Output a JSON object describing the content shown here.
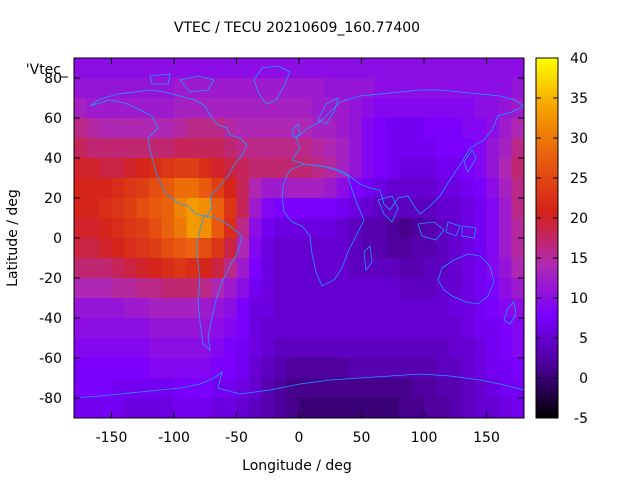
{
  "chart_data": {
    "type": "heatmap",
    "title": "VTEC / TECU 20210609_160.77400",
    "xlabel": "Longitude / deg",
    "ylabel": "Latitude / deg",
    "key_label": "'Vtec_",
    "xlim": [
      -180,
      180
    ],
    "ylim": [
      -90,
      90
    ],
    "x_ticks": [
      -150,
      -100,
      -50,
      0,
      50,
      100,
      150
    ],
    "y_ticks": [
      -80,
      -60,
      -40,
      -20,
      0,
      20,
      40,
      60,
      80
    ],
    "colorbar_range": [
      -5,
      40
    ],
    "colorbar_ticks": [
      -5,
      0,
      5,
      10,
      15,
      20,
      25,
      30,
      35,
      40
    ],
    "colormap": [
      "#000000",
      "#4b0096",
      "#7a00ff",
      "#b02ab0",
      "#d4221a",
      "#e8590f",
      "#f5a000",
      "#ffff00"
    ],
    "coastline_color": "#1e9bff",
    "grid": false,
    "longitudes": [
      -175,
      -165,
      -155,
      -145,
      -135,
      -125,
      -115,
      -105,
      -95,
      -85,
      -75,
      -65,
      -55,
      -45,
      -35,
      -25,
      -15,
      -5,
      5,
      15,
      25,
      35,
      45,
      55,
      65,
      75,
      85,
      95,
      105,
      115,
      125,
      135,
      145,
      155,
      165,
      175
    ],
    "latitudes": [
      85,
      75,
      65,
      55,
      45,
      35,
      25,
      15,
      5,
      -5,
      -15,
      -25,
      -35,
      -45,
      -55,
      -65,
      -75,
      -85
    ],
    "values": [
      [
        10,
        10,
        10,
        10,
        10,
        10,
        10,
        10,
        10,
        10,
        10,
        10,
        10,
        10,
        10,
        10,
        10,
        10,
        10,
        10,
        10,
        10,
        10,
        10,
        10,
        10,
        10,
        10,
        10,
        10,
        10,
        10,
        10,
        10,
        10,
        10
      ],
      [
        11,
        11,
        11,
        11,
        11,
        11,
        11,
        11,
        12,
        12,
        12,
        12,
        12,
        12,
        12,
        12,
        12,
        12,
        12,
        12,
        11,
        11,
        11,
        11,
        10,
        10,
        10,
        10,
        10,
        10,
        10,
        10,
        10,
        10,
        10,
        11
      ],
      [
        13,
        12,
        12,
        12,
        12,
        12,
        12,
        12,
        13,
        13,
        13,
        13,
        13,
        13,
        13,
        13,
        13,
        13,
        13,
        12,
        12,
        12,
        11,
        10,
        9,
        9,
        9,
        9,
        9,
        9,
        9,
        9,
        10,
        10,
        11,
        12
      ],
      [
        16,
        15,
        14,
        14,
        14,
        14,
        14,
        14,
        15,
        16,
        16,
        16,
        15,
        14,
        14,
        14,
        14,
        14,
        14,
        13,
        13,
        12,
        11,
        9,
        8,
        7,
        7,
        7,
        8,
        8,
        8,
        9,
        9,
        10,
        12,
        14
      ],
      [
        18,
        17,
        17,
        17,
        17,
        17,
        17,
        17,
        18,
        18,
        18,
        18,
        17,
        16,
        16,
        16,
        16,
        16,
        16,
        15,
        14,
        13,
        11,
        9,
        8,
        7,
        7,
        7,
        7,
        8,
        8,
        8,
        9,
        11,
        13,
        16
      ],
      [
        20,
        20,
        19,
        19,
        20,
        21,
        22,
        23,
        24,
        24,
        22,
        20,
        19,
        18,
        17,
        17,
        17,
        17,
        17,
        16,
        15,
        13,
        11,
        9,
        8,
        7,
        6,
        6,
        6,
        7,
        7,
        8,
        9,
        11,
        14,
        17
      ],
      [
        21,
        21,
        21,
        22,
        23,
        24,
        26,
        27,
        29,
        29,
        27,
        24,
        21,
        18,
        14,
        12,
        12,
        13,
        13,
        13,
        12,
        10,
        8,
        7,
        6,
        5,
        5,
        5,
        5,
        6,
        6,
        7,
        8,
        10,
        13,
        16
      ],
      [
        21,
        21,
        22,
        23,
        24,
        26,
        27,
        28,
        31,
        33,
        32,
        28,
        23,
        18,
        12,
        9,
        8,
        8,
        8,
        8,
        8,
        7,
        6,
        5,
        4,
        4,
        4,
        4,
        4,
        5,
        5,
        6,
        7,
        9,
        12,
        16
      ],
      [
        20,
        20,
        21,
        22,
        23,
        24,
        26,
        28,
        30,
        33,
        32,
        27,
        22,
        16,
        10,
        7,
        6,
        6,
        6,
        6,
        6,
        5,
        4,
        3,
        3,
        2,
        1,
        2,
        3,
        4,
        5,
        6,
        7,
        9,
        12,
        15
      ],
      [
        19,
        19,
        20,
        21,
        22,
        23,
        24,
        26,
        27,
        28,
        26,
        23,
        19,
        14,
        9,
        6,
        5,
        5,
        5,
        5,
        5,
        5,
        4,
        3,
        3,
        2,
        2,
        3,
        3,
        4,
        5,
        6,
        7,
        9,
        12,
        15
      ],
      [
        17,
        17,
        17,
        18,
        19,
        20,
        21,
        22,
        23,
        22,
        21,
        19,
        16,
        12,
        8,
        6,
        5,
        5,
        5,
        5,
        5,
        5,
        4,
        4,
        4,
        4,
        3,
        3,
        4,
        4,
        5,
        6,
        7,
        9,
        11,
        14
      ],
      [
        14,
        14,
        14,
        15,
        15,
        16,
        16,
        17,
        17,
        17,
        16,
        14,
        12,
        10,
        7,
        6,
        5,
        5,
        5,
        5,
        5,
        5,
        5,
        5,
        5,
        5,
        4,
        4,
        4,
        5,
        5,
        6,
        7,
        8,
        10,
        12
      ],
      [
        11,
        11,
        11,
        11,
        12,
        12,
        13,
        13,
        13,
        13,
        12,
        11,
        10,
        8,
        6,
        6,
        5,
        5,
        5,
        5,
        5,
        5,
        5,
        5,
        5,
        5,
        5,
        5,
        5,
        5,
        6,
        6,
        7,
        8,
        9,
        10
      ],
      [
        10,
        10,
        10,
        10,
        10,
        10,
        11,
        11,
        11,
        11,
        11,
        10,
        9,
        8,
        6,
        5,
        5,
        5,
        5,
        5,
        5,
        5,
        5,
        5,
        5,
        5,
        5,
        5,
        5,
        5,
        5,
        6,
        7,
        7,
        8,
        9
      ],
      [
        9,
        9,
        9,
        9,
        9,
        9,
        10,
        10,
        10,
        10,
        10,
        9,
        8,
        7,
        6,
        5,
        4,
        4,
        4,
        4,
        4,
        4,
        4,
        4,
        4,
        4,
        4,
        4,
        4,
        4,
        5,
        5,
        6,
        7,
        8,
        9
      ],
      [
        8,
        8,
        8,
        8,
        8,
        8,
        9,
        9,
        9,
        9,
        9,
        8,
        8,
        7,
        5,
        4,
        3,
        2,
        2,
        2,
        2,
        2,
        3,
        3,
        3,
        3,
        3,
        3,
        3,
        4,
        4,
        5,
        6,
        7,
        7,
        8
      ],
      [
        8,
        8,
        8,
        7,
        7,
        7,
        7,
        7,
        8,
        8,
        8,
        7,
        7,
        6,
        5,
        3,
        2,
        1,
        1,
        1,
        1,
        1,
        1,
        1,
        1,
        1,
        1,
        2,
        2,
        3,
        3,
        4,
        5,
        6,
        7,
        7
      ],
      [
        7,
        7,
        7,
        7,
        6,
        6,
        6,
        6,
        7,
        7,
        7,
        6,
        6,
        5,
        4,
        3,
        2,
        1,
        0,
        0,
        0,
        0,
        0,
        0,
        0,
        0,
        1,
        1,
        2,
        2,
        3,
        4,
        5,
        5,
        6,
        7
      ]
    ]
  }
}
